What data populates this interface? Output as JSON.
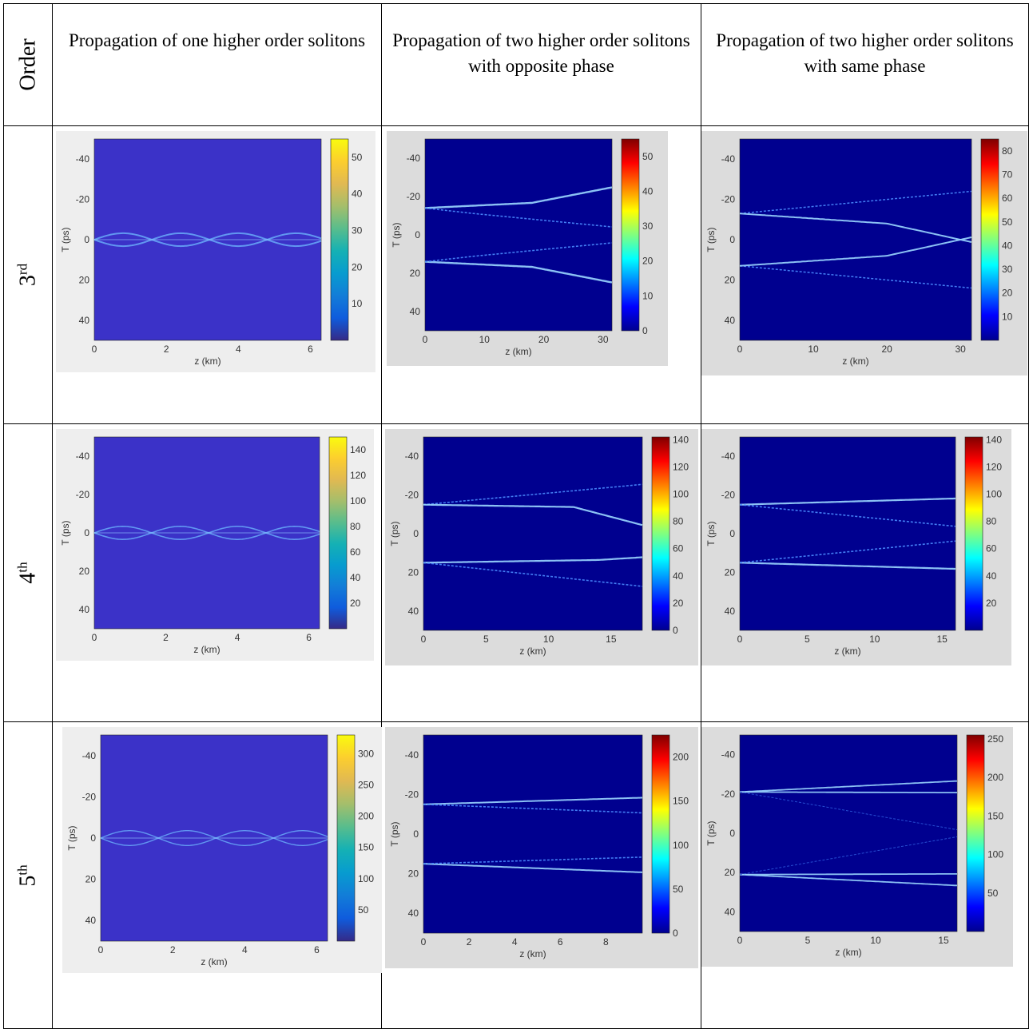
{
  "headers": {
    "order": "Order",
    "col1": "Propagation of one higher order solitons",
    "col2": "Propagation of two higher order solitons with opposite phase",
    "col3": "Propagation of two higher order solitons with same phase"
  },
  "rows": [
    {
      "order_num": "3",
      "order_sup": "rd"
    },
    {
      "order_num": "4",
      "order_sup": "th"
    },
    {
      "order_num": "5",
      "order_sup": "th"
    }
  ],
  "colors": {
    "one_bg": "#3b32c8",
    "two_bg": "#00008f",
    "beam": "#6fb9ff",
    "panel_gray": "#dcdcdc"
  },
  "chart_data": [
    {
      "type": "heatmap",
      "row": "3rd",
      "col": "one",
      "xlabel": "z (km)",
      "ylabel": "T (ps)",
      "xlim": [
        0,
        6.3
      ],
      "ylim": [
        -50,
        50
      ],
      "xticks": [
        0,
        2,
        4,
        6
      ],
      "yticks": [
        -40,
        -20,
        0,
        20,
        40
      ],
      "colorbar": {
        "colormap": "parula",
        "ticks": [
          10,
          20,
          30,
          40,
          50
        ],
        "max": 55
      }
    },
    {
      "type": "heatmap",
      "row": "3rd",
      "col": "opposite",
      "xlabel": "z (km)",
      "ylabel": "T (ps)",
      "xlim": [
        0,
        31.5
      ],
      "ylim": [
        -50,
        50
      ],
      "xticks": [
        0,
        10,
        20,
        30
      ],
      "yticks": [
        -40,
        -20,
        0,
        20,
        40
      ],
      "colorbar": {
        "colormap": "jet",
        "ticks": [
          0,
          10,
          20,
          30,
          40,
          50
        ],
        "max": 55
      }
    },
    {
      "type": "heatmap",
      "row": "3rd",
      "col": "same",
      "xlabel": "z (km)",
      "ylabel": "T (ps)",
      "xlim": [
        0,
        31.5
      ],
      "ylim": [
        -50,
        50
      ],
      "xticks": [
        0,
        10,
        20,
        30
      ],
      "yticks": [
        -40,
        -20,
        0,
        20,
        40
      ],
      "colorbar": {
        "colormap": "jet",
        "ticks": [
          10,
          20,
          30,
          40,
          50,
          60,
          70,
          80
        ],
        "max": 85
      }
    },
    {
      "type": "heatmap",
      "row": "4th",
      "col": "one",
      "xlabel": "z (km)",
      "ylabel": "T (ps)",
      "xlim": [
        0,
        6.3
      ],
      "ylim": [
        -50,
        50
      ],
      "xticks": [
        0,
        2,
        4,
        6
      ],
      "yticks": [
        -40,
        -20,
        0,
        20,
        40
      ],
      "colorbar": {
        "colormap": "parula",
        "ticks": [
          20,
          40,
          60,
          80,
          100,
          120,
          140
        ],
        "max": 150
      }
    },
    {
      "type": "heatmap",
      "row": "4th",
      "col": "opposite",
      "xlabel": "z (km)",
      "ylabel": "T (ps)",
      "xlim": [
        0,
        17.5
      ],
      "ylim": [
        -50,
        50
      ],
      "xticks": [
        0,
        5,
        10,
        15
      ],
      "yticks": [
        -40,
        -20,
        0,
        20,
        40
      ],
      "colorbar": {
        "colormap": "jet",
        "ticks": [
          0,
          20,
          40,
          60,
          80,
          100,
          120,
          140
        ],
        "max": 142
      }
    },
    {
      "type": "heatmap",
      "row": "4th",
      "col": "same",
      "xlabel": "z (km)",
      "ylabel": "T (ps)",
      "xlim": [
        0,
        16
      ],
      "ylim": [
        -50,
        50
      ],
      "xticks": [
        0,
        5,
        10,
        15
      ],
      "yticks": [
        -40,
        -20,
        0,
        20,
        40
      ],
      "colorbar": {
        "colormap": "jet",
        "ticks": [
          20,
          40,
          60,
          80,
          100,
          120,
          140
        ],
        "max": 142
      }
    },
    {
      "type": "heatmap",
      "row": "5th",
      "col": "one",
      "xlabel": "z (km)",
      "ylabel": "T (ps)",
      "xlim": [
        0,
        6.3
      ],
      "ylim": [
        -50,
        50
      ],
      "xticks": [
        0,
        2,
        4,
        6
      ],
      "yticks": [
        -40,
        -20,
        0,
        20,
        40
      ],
      "colorbar": {
        "colormap": "parula",
        "ticks": [
          50,
          100,
          150,
          200,
          250,
          300
        ],
        "max": 330
      }
    },
    {
      "type": "heatmap",
      "row": "5th",
      "col": "opposite",
      "xlabel": "z (km)",
      "ylabel": "T (ps)",
      "xlim": [
        0,
        9.6
      ],
      "ylim": [
        -50,
        50
      ],
      "xticks": [
        0,
        2,
        4,
        6,
        8
      ],
      "yticks": [
        -40,
        -20,
        0,
        20,
        40
      ],
      "colorbar": {
        "colormap": "jet",
        "ticks": [
          0,
          50,
          100,
          150,
          200
        ],
        "max": 225
      }
    },
    {
      "type": "heatmap",
      "row": "5th",
      "col": "same",
      "xlabel": "z (km)",
      "ylabel": "T (ps)",
      "xlim": [
        0,
        16
      ],
      "ylim": [
        -50,
        50
      ],
      "xticks": [
        0,
        5,
        10,
        15
      ],
      "yticks": [
        -40,
        -20,
        0,
        20,
        40
      ],
      "colorbar": {
        "colormap": "jet",
        "ticks": [
          50,
          100,
          150,
          200,
          250
        ],
        "max": 255
      }
    }
  ]
}
